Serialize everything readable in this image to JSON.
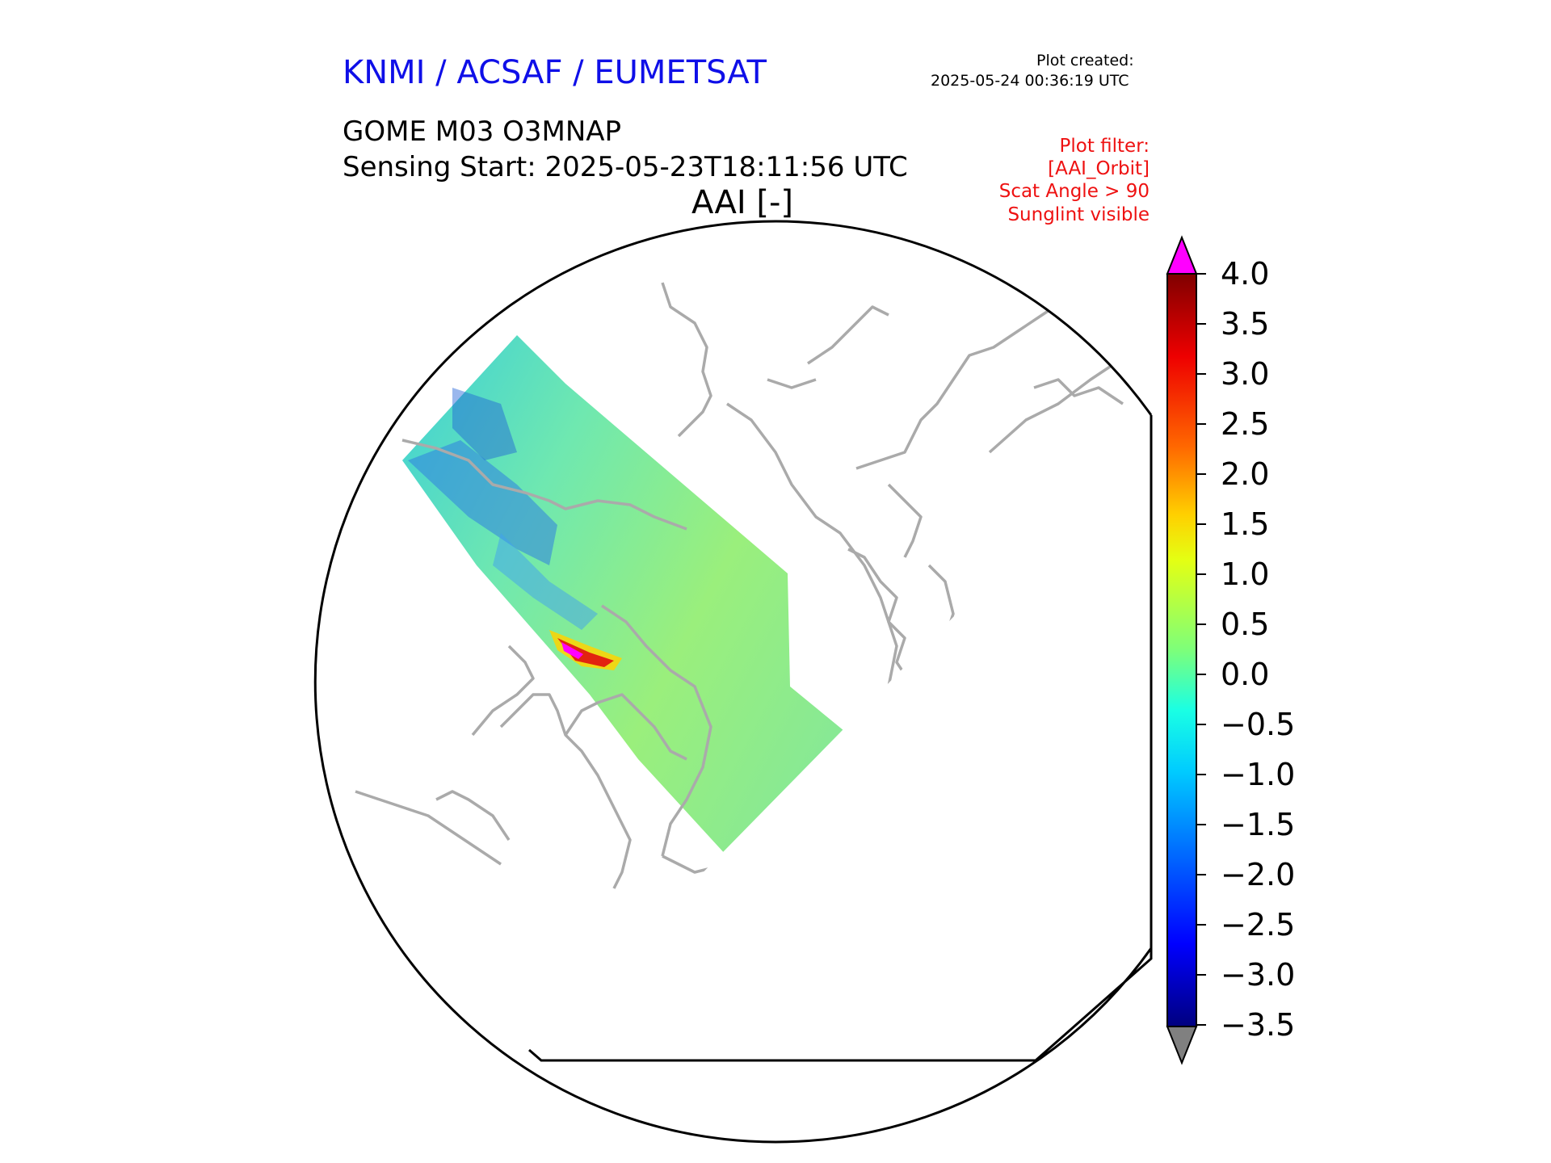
{
  "header": {
    "agency": "KNMI / ACSAF / EUMETSAT",
    "plot_created_label": "Plot created:",
    "plot_created_time": "2025-05-24 00:36:19 UTC",
    "product": "GOME M03 O3MNAP",
    "sensing_start": "Sensing Start: 2025-05-23T18:11:56 UTC",
    "variable": "AAI [-]"
  },
  "plot_filter": {
    "lines": [
      "Plot filter:",
      "[AAI_Orbit]",
      "Scat Angle > 90",
      "Sunglint visible"
    ]
  },
  "colorbar": {
    "ticks": [
      "4.0",
      "3.5",
      "3.0",
      "2.5",
      "2.0",
      "1.5",
      "1.0",
      "0.5",
      "0.0",
      "−0.5",
      "−1.0",
      "−1.5",
      "−2.0",
      "−2.5",
      "−3.0",
      "−3.5"
    ],
    "min": -3.5,
    "max": 4.0,
    "over_color": "#ff00ff",
    "under_color": "#808080"
  },
  "map": {
    "projection": "north-polar-stereographic",
    "coastline_color": "#aaaaaa",
    "swath_dominant_value": 0.2,
    "swath_peak_value": 4.0
  }
}
